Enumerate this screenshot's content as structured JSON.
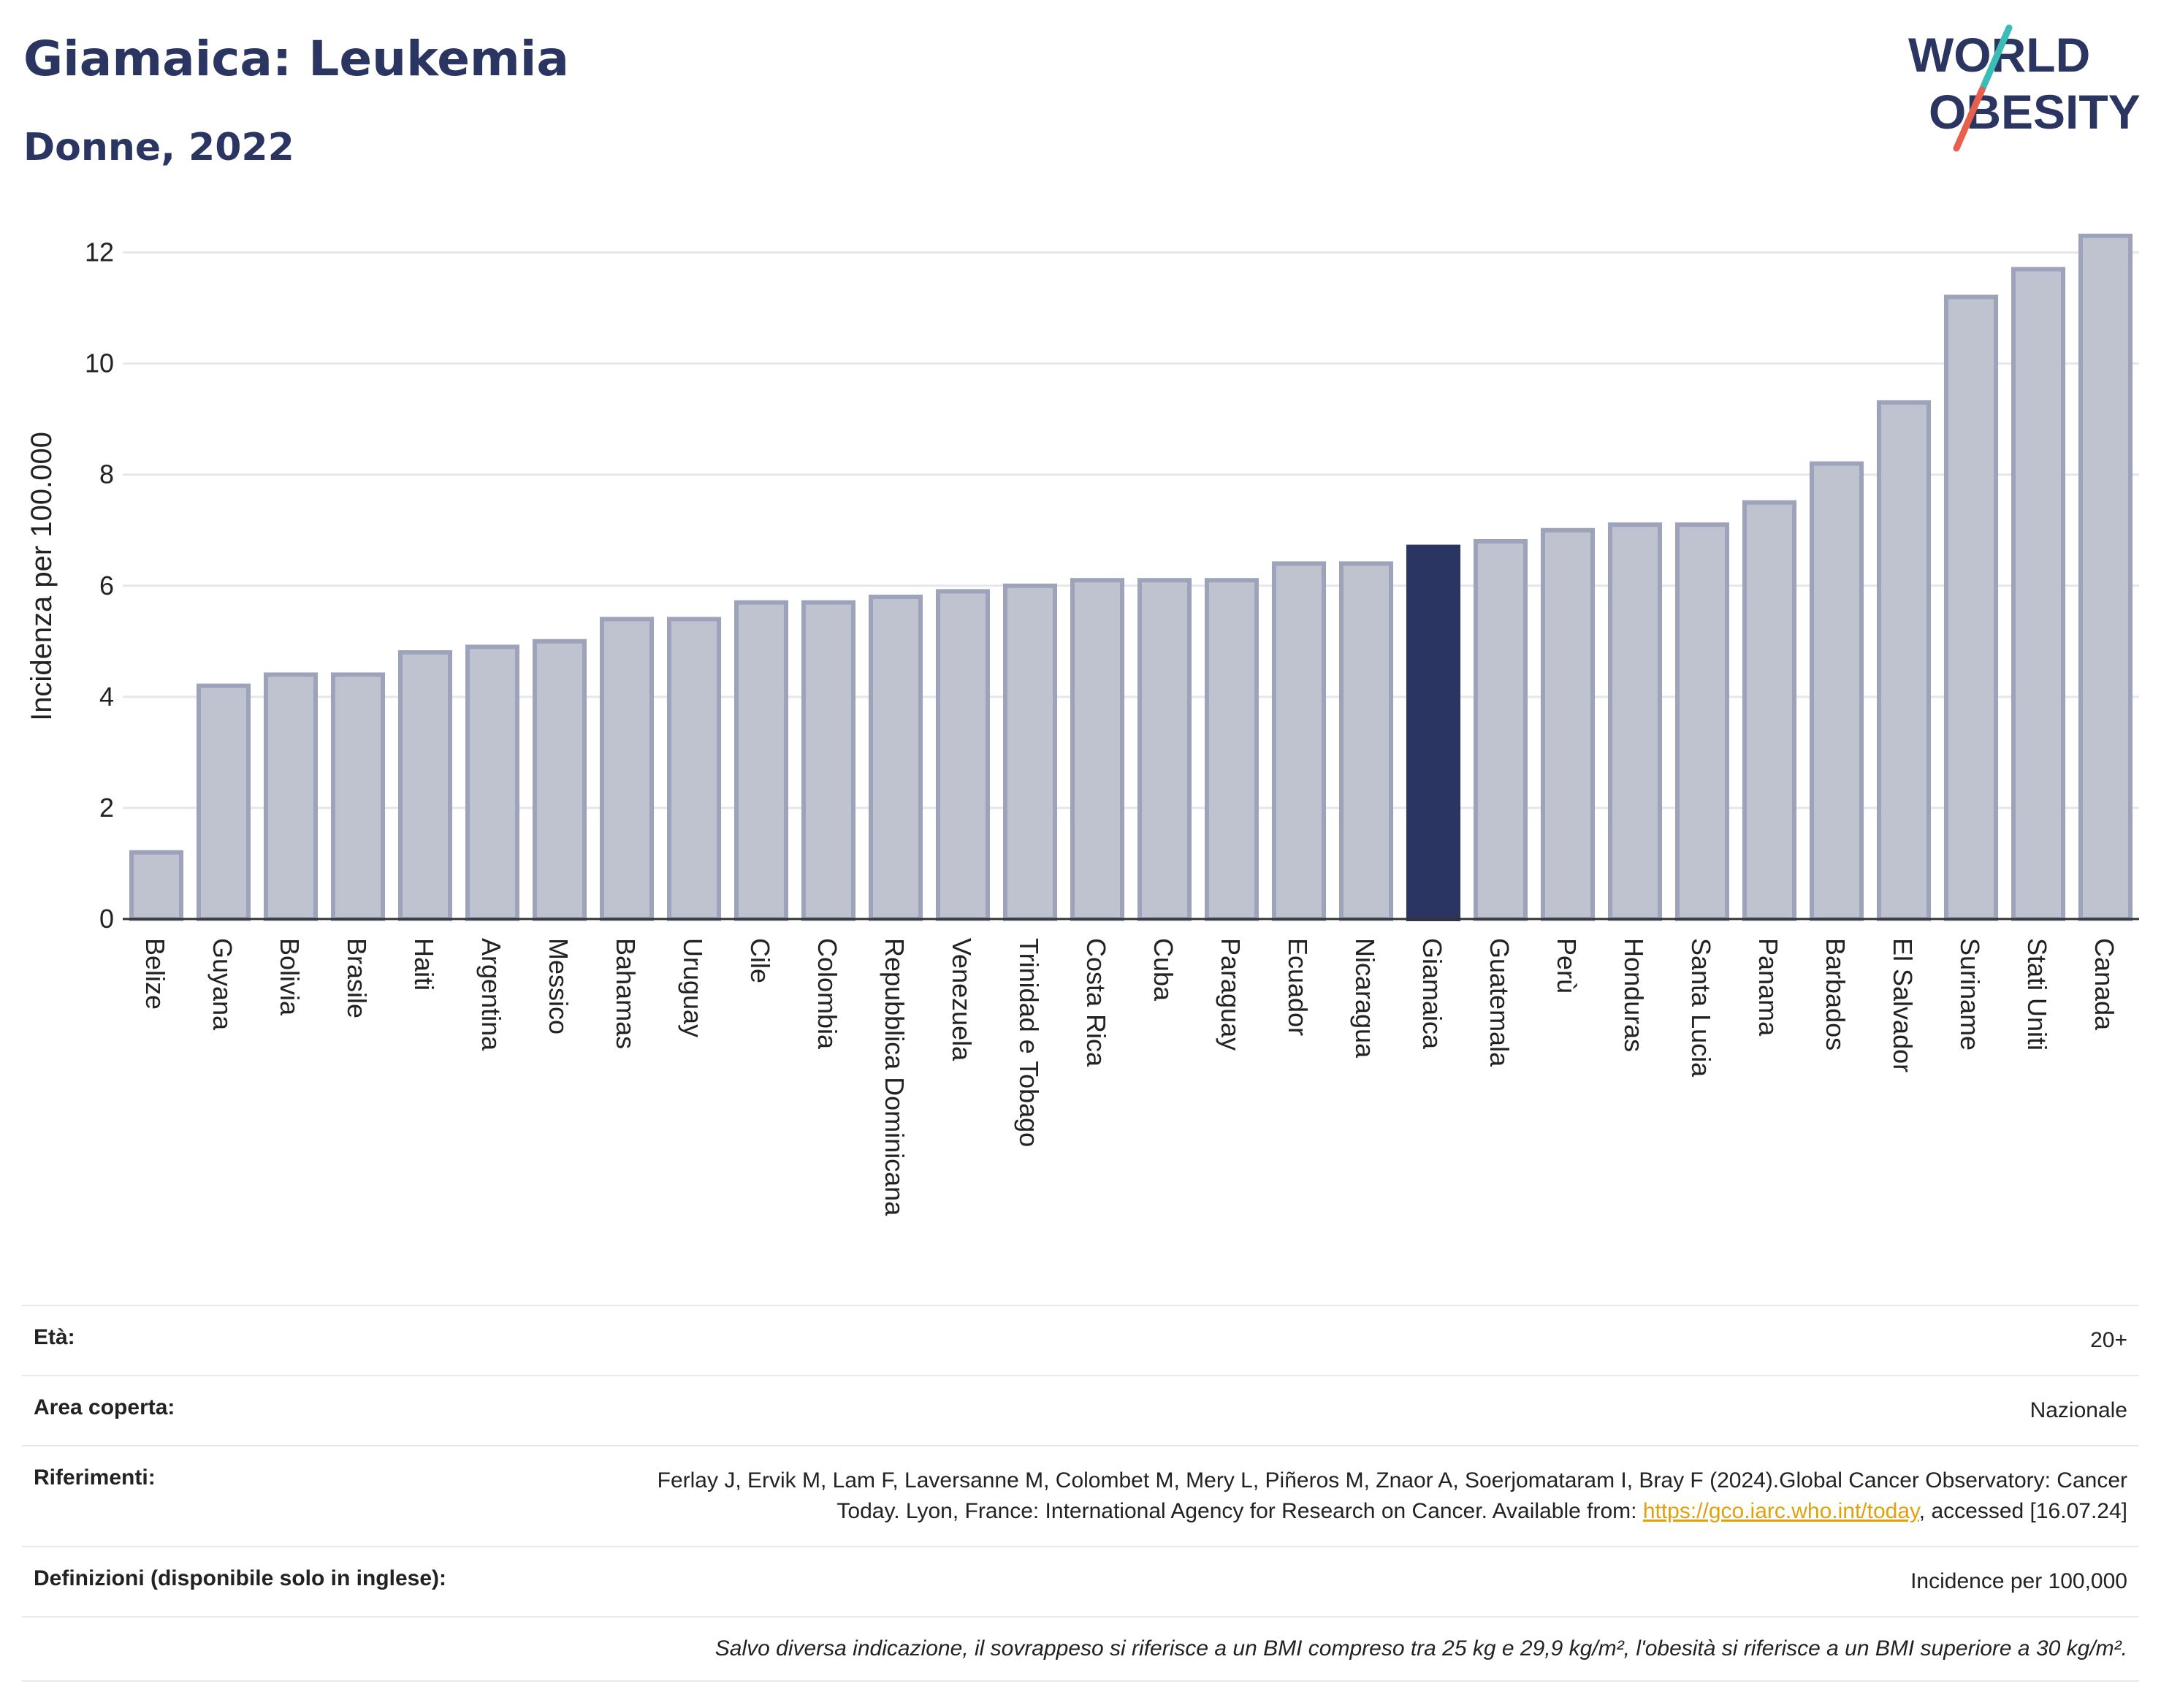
{
  "header": {
    "title": "Giamaica: Leukemia",
    "subtitle": "Donne, 2022"
  },
  "logo": {
    "line1": "WORLD",
    "line2": "OBESITY",
    "colors": {
      "text": "#2b3561",
      "slash_top": "#3bbdb6",
      "slash_bottom": "#e8604c"
    }
  },
  "chart_data": {
    "type": "bar",
    "ylabel": "Incidenza per 100.000",
    "ylim": [
      0,
      12.6
    ],
    "yticks": [
      0,
      2,
      4,
      6,
      8,
      10,
      12
    ],
    "grid": true,
    "highlight": "Giamaica",
    "colors": {
      "bar": "#bfc3d0",
      "bar_border": "#9da3bb",
      "highlight": "#2b3561"
    },
    "categories": [
      "Belize",
      "Guyana",
      "Bolivia",
      "Brasile",
      "Haiti",
      "Argentina",
      "Messico",
      "Bahamas",
      "Uruguay",
      "Cile",
      "Colombia",
      "Repubblica Dominicana",
      "Venezuela",
      "Trinidad e Tobago",
      "Costa Rica",
      "Cuba",
      "Paraguay",
      "Ecuador",
      "Nicaragua",
      "Giamaica",
      "Guatemala",
      "Perù",
      "Honduras",
      "Santa Lucia",
      "Panama",
      "Barbados",
      "El Salvador",
      "Suriname",
      "Stati Uniti",
      "Canada"
    ],
    "values": [
      1.2,
      4.2,
      4.4,
      4.4,
      4.8,
      4.9,
      5.0,
      5.4,
      5.4,
      5.7,
      5.7,
      5.8,
      5.9,
      6.0,
      6.1,
      6.1,
      6.1,
      6.4,
      6.4,
      6.7,
      6.8,
      7.0,
      7.1,
      7.1,
      7.5,
      8.2,
      9.3,
      11.2,
      11.7,
      12.3
    ]
  },
  "meta": {
    "age_label": "Età:",
    "age_value": "20+",
    "area_label": "Area coperta:",
    "area_value": "Nazionale",
    "ref_label": "Riferimenti:",
    "ref_text_1": "Ferlay J, Ervik M, Lam F, Laversanne M, Colombet M, Mery L, Piñeros M, Znaor A, Soerjomataram I, Bray F (2024).Global Cancer Observatory: Cancer Today. Lyon, France: International Agency for Research on Cancer. Available from: ",
    "ref_link": "https://gco.iarc.who.int/today",
    "ref_text_2": ", accessed [16.07.24]",
    "def_label": "Definizioni (disponibile solo in inglese):",
    "def_value": "Incidence per 100,000",
    "note": "Salvo diversa indicazione, il sovrappeso si riferisce a un BMI compreso tra 25 kg e 29,9 kg/m², l'obesità si riferisce a un BMI superiore a 30 kg/m²."
  }
}
